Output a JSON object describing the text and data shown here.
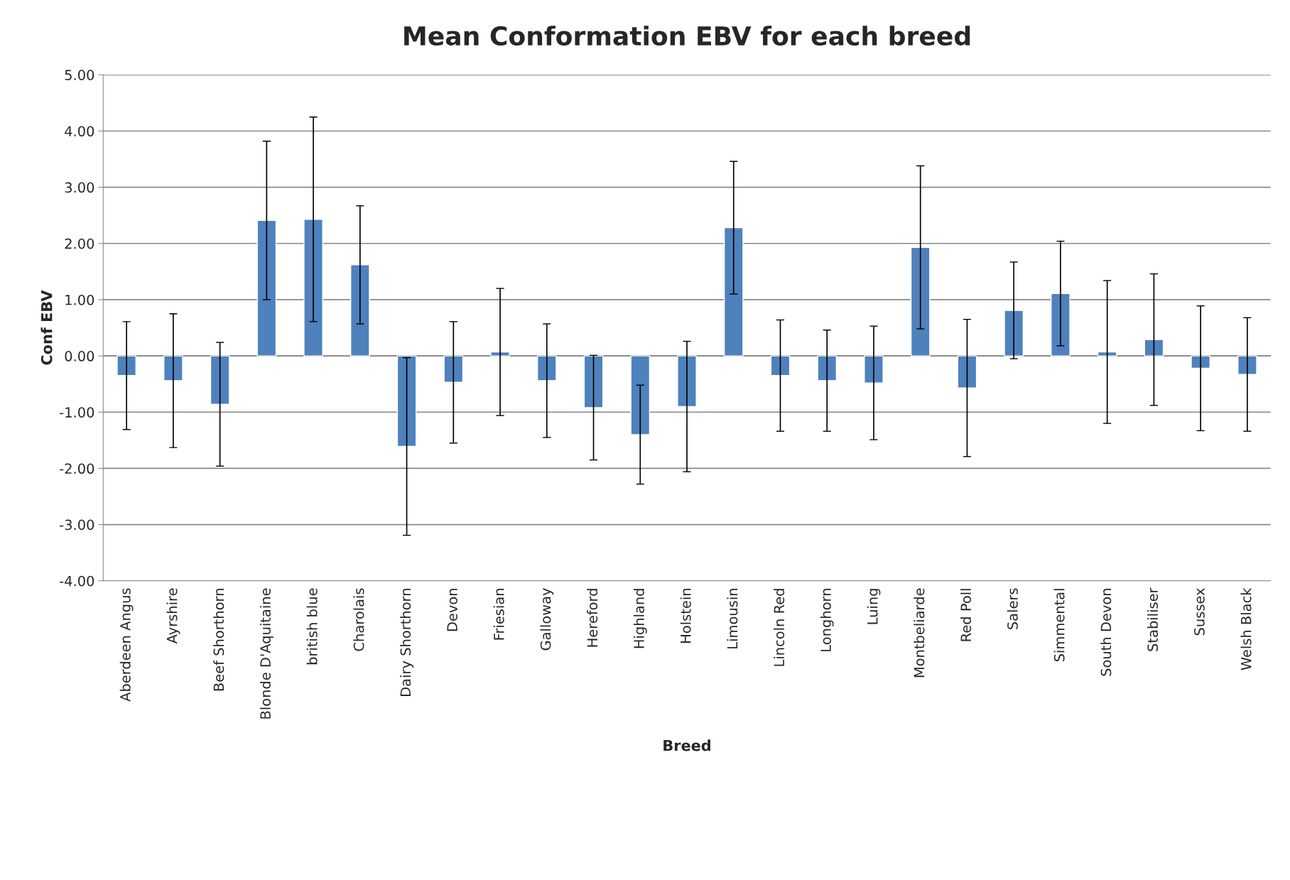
{
  "chart_data": {
    "type": "bar",
    "title": "Mean Conformation EBV for each breed",
    "xlabel": "Breed",
    "ylabel": "Conf EBV",
    "categories": [
      "Aberdeen Angus",
      "Ayrshire",
      "Beef Shorthorn",
      "Blonde D'Aquitaine",
      "british blue",
      "Charolais",
      "Dairy Shorthorn",
      "Devon",
      "Friesian",
      "Galloway",
      "Hereford",
      "Highland",
      "Holstein",
      "Limousin",
      "Lincoln Red",
      "Longhorn",
      "Luing",
      "Montbeliarde",
      "Red Poll",
      "Salers",
      "Simmental",
      "South Devon",
      "Stabiliser",
      "Sussex",
      "Welsh Black"
    ],
    "values": [
      -0.35,
      -0.44,
      -0.86,
      2.41,
      2.43,
      1.62,
      -1.61,
      -0.47,
      0.07,
      -0.44,
      -0.92,
      -1.4,
      -0.9,
      2.28,
      -0.35,
      -0.44,
      -0.48,
      1.93,
      -0.57,
      0.81,
      1.11,
      0.07,
      0.29,
      -0.22,
      -0.33
    ],
    "errors": [
      0.96,
      1.19,
      1.1,
      1.41,
      1.82,
      1.05,
      1.58,
      1.08,
      1.13,
      1.01,
      0.93,
      0.88,
      1.16,
      1.18,
      0.99,
      0.9,
      1.01,
      1.45,
      1.22,
      0.86,
      0.93,
      1.27,
      1.17,
      1.11,
      1.01
    ],
    "color": "#4f81bd",
    "ylim": [
      -4,
      5
    ],
    "yticks": [
      {
        "value": -4,
        "label": "-4.00"
      },
      {
        "value": -3,
        "label": "-3.00"
      },
      {
        "value": -2,
        "label": "-2.00"
      },
      {
        "value": -1,
        "label": "-1.00"
      },
      {
        "value": 0,
        "label": "0.00"
      },
      {
        "value": 1,
        "label": "1.00"
      },
      {
        "value": 2,
        "label": "2.00"
      },
      {
        "value": 3,
        "label": "3.00"
      },
      {
        "value": 4,
        "label": "4.00"
      },
      {
        "value": 5,
        "label": "5.00"
      }
    ],
    "grid": "y",
    "legend": false
  }
}
